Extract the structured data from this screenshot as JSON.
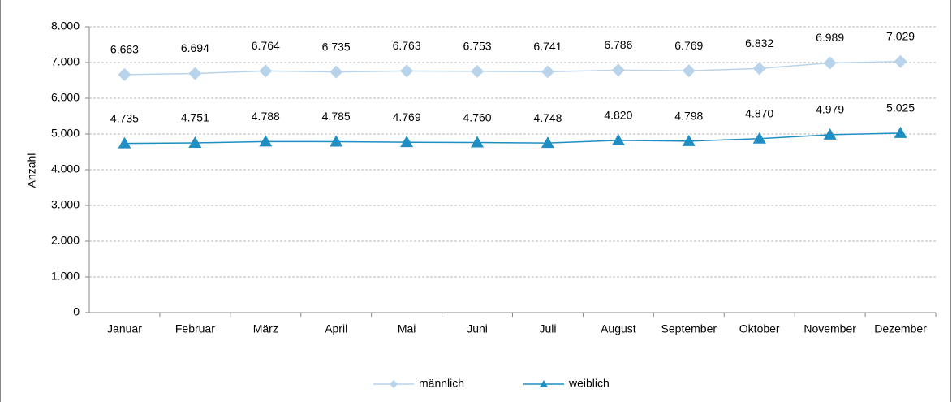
{
  "chart_data": {
    "type": "line",
    "y_label": "Anzahl",
    "categories": [
      "Januar",
      "Februar",
      "März",
      "April",
      "Mai",
      "Juni",
      "Juli",
      "August",
      "September",
      "Oktober",
      "November",
      "Dezember"
    ],
    "series": [
      {
        "name": "männlich",
        "color": "#b9d3ea",
        "marker": "diamond",
        "values": [
          6663,
          6694,
          6764,
          6735,
          6763,
          6753,
          6741,
          6786,
          6769,
          6832,
          6989,
          7029
        ],
        "value_labels": [
          "6.663",
          "6.694",
          "6.764",
          "6.735",
          "6.763",
          "6.753",
          "6.741",
          "6.786",
          "6.769",
          "6.832",
          "6.989",
          "7.029"
        ]
      },
      {
        "name": "weiblich",
        "color": "#1f8ec3",
        "marker": "triangle",
        "values": [
          4735,
          4751,
          4788,
          4785,
          4769,
          4760,
          4748,
          4820,
          4798,
          4870,
          4979,
          5025
        ],
        "value_labels": [
          "4.735",
          "4.751",
          "4.788",
          "4.785",
          "4.769",
          "4.760",
          "4.748",
          "4.820",
          "4.798",
          "4.870",
          "4.979",
          "5.025"
        ]
      }
    ],
    "ylim": [
      0,
      8000
    ],
    "yticks": [
      0,
      {
        "value": 1000,
        "label": "1.000"
      },
      {
        "value": 2000,
        "label": "2.000"
      },
      {
        "value": 3000,
        "label": "3.000"
      },
      {
        "value": 4000,
        "label": "4.000"
      },
      {
        "value": 5000,
        "label": "5.000"
      },
      {
        "value": 6000,
        "label": "6.000"
      },
      {
        "value": 7000,
        "label": "7.000"
      },
      {
        "value": 8000,
        "label": "8.000"
      }
    ],
    "grid": true,
    "legend": "bottom"
  }
}
